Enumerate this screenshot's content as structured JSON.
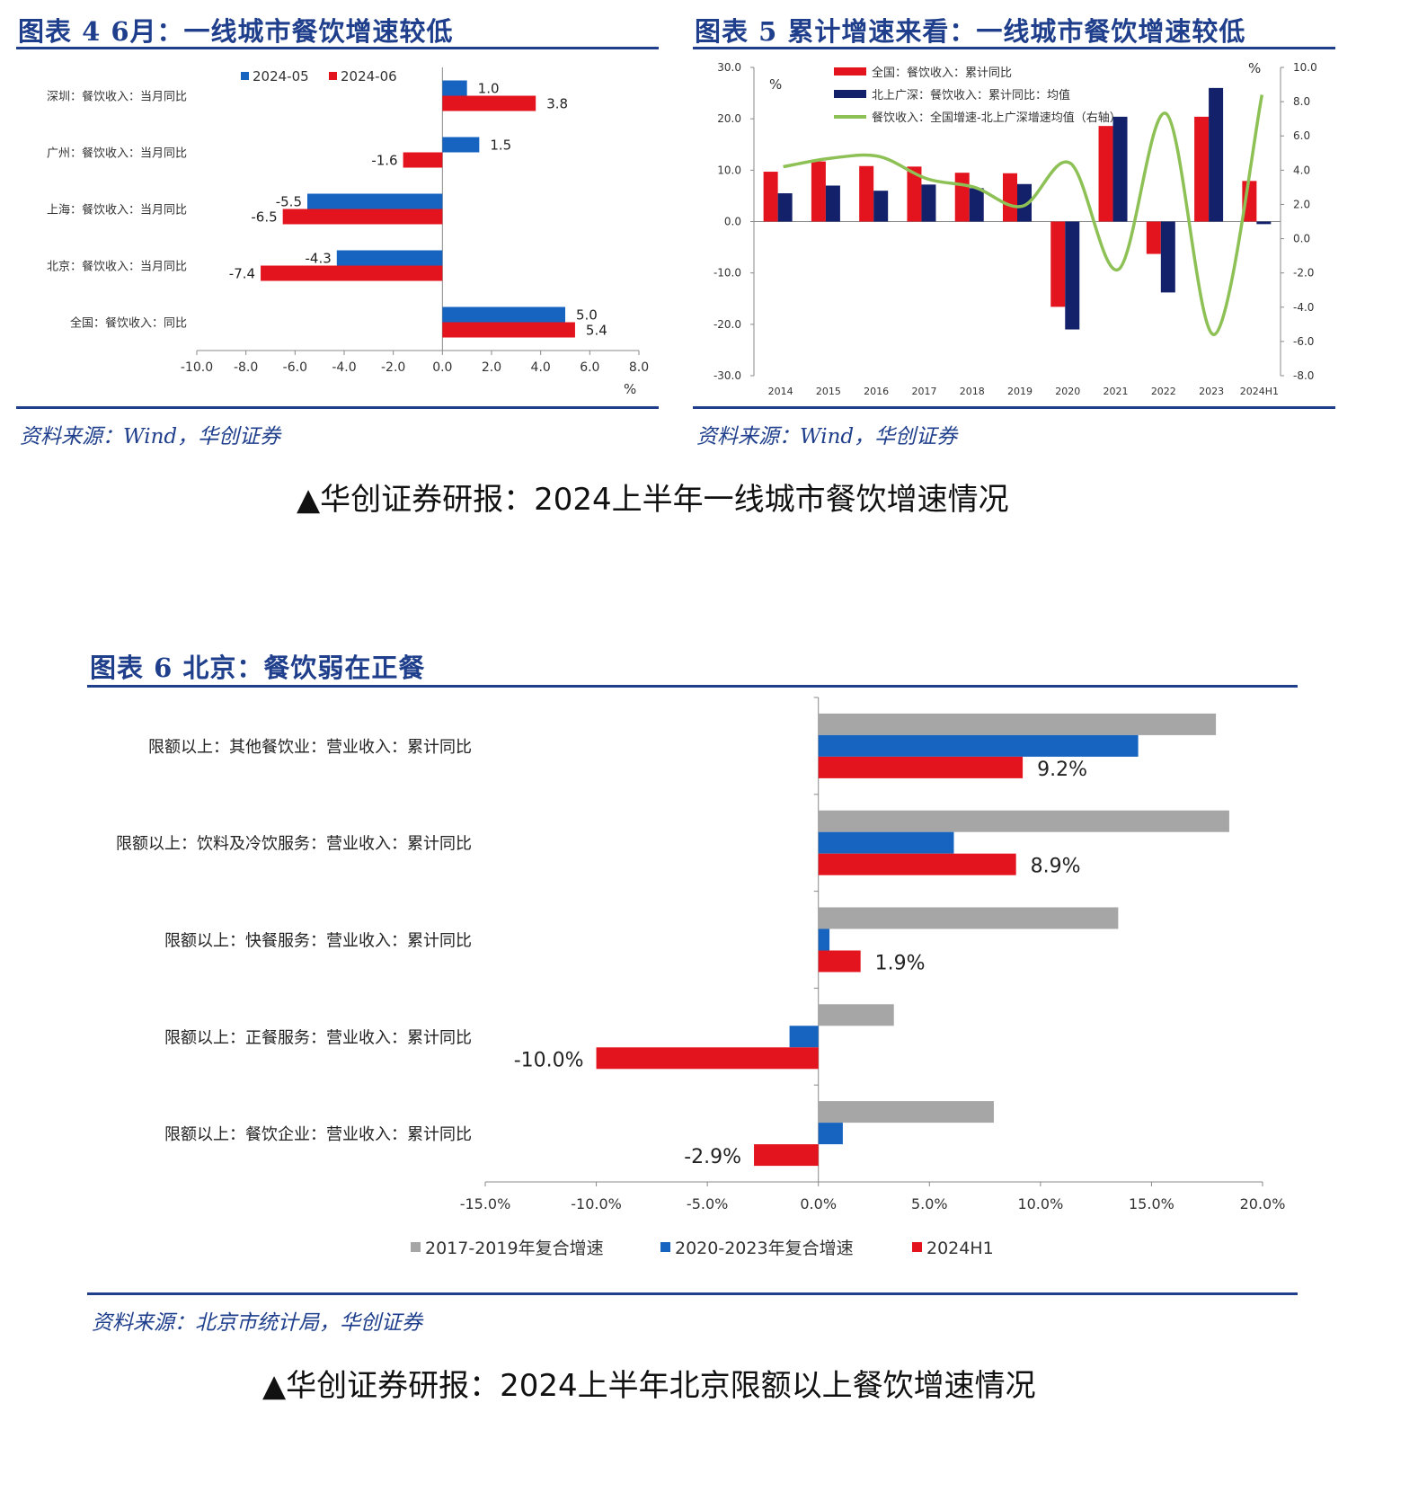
{
  "fig4": {
    "title": "图表 4  6月：一线城市餐饮增速较低",
    "source": "资料来源：Wind，华创证券",
    "chart_data": {
      "type": "bar",
      "orientation": "horizontal",
      "categories": [
        "深圳：餐饮收入：当月同比",
        "广州：餐饮收入：当月同比",
        "上海：餐饮收入：当月同比",
        "北京：餐饮收入：当月同比",
        "全国：餐饮收入：同比"
      ],
      "series": [
        {
          "name": "2024-05",
          "color": "#1764c0",
          "values": [
            1.0,
            1.5,
            -5.5,
            -4.3,
            5.0
          ],
          "labels": [
            "1.0",
            "1.5",
            "-5.5",
            "-4.3",
            "5.0"
          ]
        },
        {
          "name": "2024-06",
          "color": "#e3141e",
          "values": [
            3.8,
            -1.6,
            -6.5,
            -7.4,
            5.4
          ],
          "labels": [
            "3.8",
            "-1.6",
            "-6.5",
            "-7.4",
            "5.4"
          ]
        }
      ],
      "xlim": [
        -10,
        8
      ],
      "xticks": [
        "-10.0",
        "-8.0",
        "-6.0",
        "-4.0",
        "-2.0",
        "0.0",
        "2.0",
        "4.0",
        "6.0",
        "8.0"
      ],
      "xlabel": "%"
    }
  },
  "fig5": {
    "title": "图表 5  累计增速来看：一线城市餐饮增速较低",
    "source": "资料来源：Wind，华创证券",
    "chart_data": {
      "type": "bar+line",
      "categories": [
        "2014",
        "2015",
        "2016",
        "2017",
        "2018",
        "2019",
        "2020",
        "2021",
        "2022",
        "2023",
        "2024H1"
      ],
      "series": [
        {
          "name": "全国：餐饮收入：累计同比",
          "color": "#e3141e",
          "axis": "left",
          "values": [
            9.7,
            11.7,
            10.8,
            10.7,
            9.5,
            9.4,
            -16.6,
            18.6,
            -6.3,
            20.4,
            7.9
          ]
        },
        {
          "name": "北上广深：餐饮收入：累计同比：均值",
          "color": "#13206a",
          "axis": "left",
          "values": [
            5.5,
            7.0,
            6.0,
            7.2,
            6.5,
            7.3,
            -21.0,
            20.4,
            -13.8,
            26.0,
            -0.5
          ]
        },
        {
          "name": "餐饮收入：全国增速-北上广深增速均值（右轴）",
          "color": "#8dc155",
          "axis": "right",
          "values": [
            4.2,
            4.7,
            4.8,
            3.5,
            3.0,
            1.9,
            4.4,
            -1.8,
            7.3,
            -5.6,
            8.4
          ]
        }
      ],
      "left_axis": {
        "label": "%",
        "ylim": [
          -30,
          30
        ],
        "ticks": [
          "30.0",
          "20.0",
          "10.0",
          "0.0",
          "-10.0",
          "-20.0",
          "-30.0"
        ]
      },
      "right_axis": {
        "label": "%",
        "ylim": [
          -8,
          10
        ],
        "ticks": [
          "10.0",
          "8.0",
          "6.0",
          "4.0",
          "2.0",
          "0.0",
          "-2.0",
          "-4.0",
          "-6.0",
          "-8.0"
        ]
      }
    }
  },
  "caption1": "▲华创证券研报：2024上半年一线城市餐饮增速情况",
  "fig6": {
    "title": "图表 6  北京：餐饮弱在正餐",
    "source": "资料来源：北京市统计局，华创证券",
    "chart_data": {
      "type": "bar",
      "orientation": "horizontal",
      "categories": [
        "限额以上：其他餐饮业：营业收入：累计同比",
        "限额以上：饮料及冷饮服务：营业收入：累计同比",
        "限额以上：快餐服务：营业收入：累计同比",
        "限额以上：正餐服务：营业收入：累计同比",
        "限额以上：餐饮企业：营业收入：累计同比"
      ],
      "series": [
        {
          "name": "2017-2019年复合增速",
          "color": "#a6a6a6",
          "values": [
            17.9,
            18.5,
            13.5,
            3.4,
            7.9
          ]
        },
        {
          "name": "2020-2023年复合增速",
          "color": "#1764c0",
          "values": [
            14.4,
            6.1,
            0.5,
            -1.3,
            1.1
          ]
        },
        {
          "name": "2024H1",
          "color": "#e3141e",
          "values": [
            9.2,
            8.9,
            1.9,
            -10.0,
            -2.9
          ],
          "labels": [
            "9.2%",
            "8.9%",
            "1.9%",
            "-10.0%",
            "-2.9%"
          ]
        }
      ],
      "xlim": [
        -15,
        20
      ],
      "xticks": [
        "-15.0%",
        "-10.0%",
        "-5.0%",
        "0.0%",
        "5.0%",
        "10.0%",
        "15.0%",
        "20.0%"
      ]
    }
  },
  "caption2": "▲华创证券研报：2024上半年北京限额以上餐饮增速情况"
}
